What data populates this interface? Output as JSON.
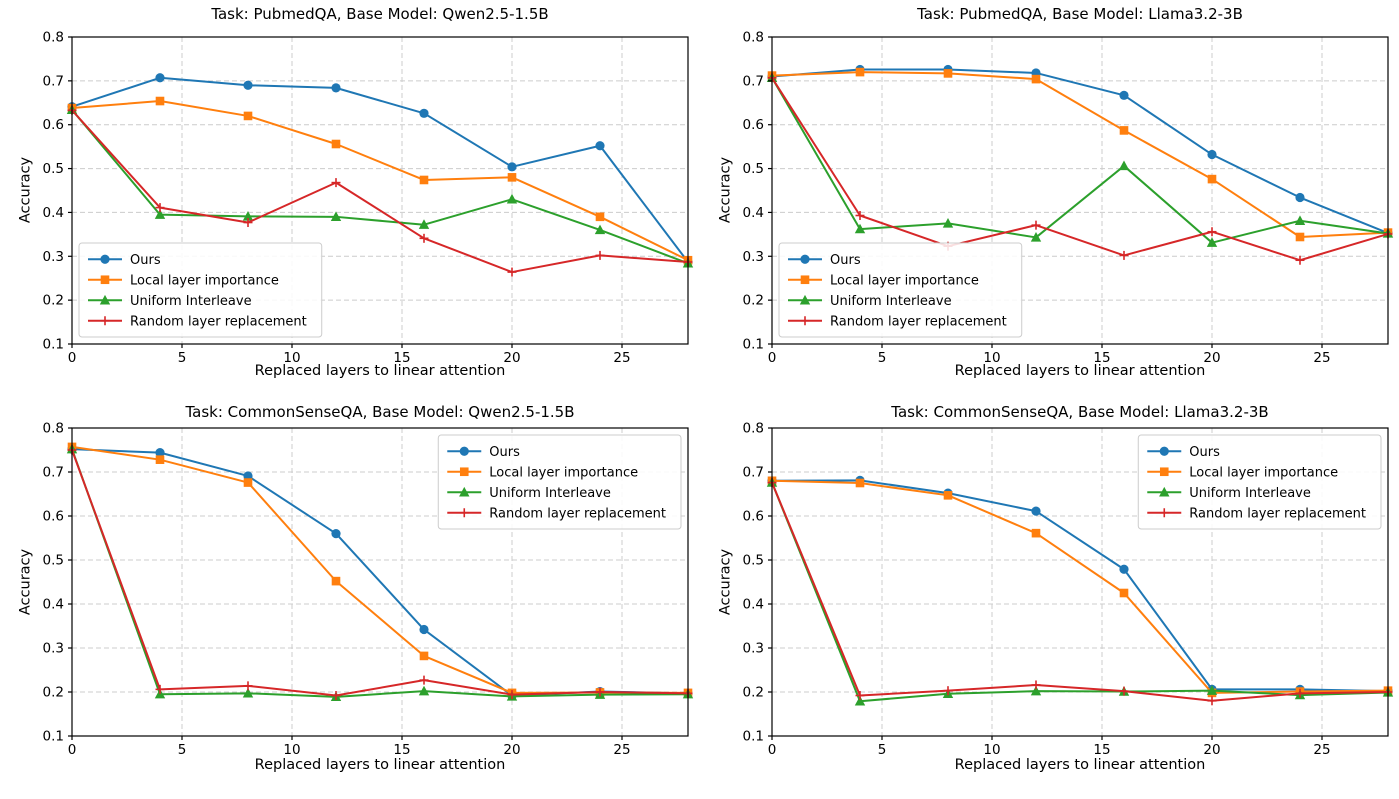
{
  "figure": {
    "background": "#ffffff",
    "text_color": "#000000",
    "grid_color": "#cccccc",
    "spine_color": "#000000",
    "legend_border_color": "#cccccc"
  },
  "chart_data": [
    {
      "type": "line",
      "title": "Task: PubmedQA, Base Model: Qwen2.5-1.5B",
      "xlabel": "Replaced layers to linear attention",
      "ylabel": "Accuracy",
      "x": [
        0,
        4,
        8,
        12,
        16,
        20,
        24,
        28
      ],
      "xlim": [
        0,
        28
      ],
      "ylim": [
        0.1,
        0.8
      ],
      "xticks": [
        0,
        5,
        10,
        15,
        20,
        25
      ],
      "yticks": [
        0.1,
        0.2,
        0.3,
        0.4,
        0.5,
        0.6,
        0.7,
        0.8
      ],
      "grid": true,
      "legend_position": "lower-left",
      "series": [
        {
          "name": "Ours",
          "color": "#1f77b4",
          "marker": "circle",
          "values": [
            0.641,
            0.707,
            0.69,
            0.684,
            0.626,
            0.504,
            0.552,
            0.287
          ]
        },
        {
          "name": "Local layer importance",
          "color": "#ff7f0e",
          "marker": "square",
          "values": [
            0.638,
            0.654,
            0.62,
            0.556,
            0.474,
            0.48,
            0.39,
            0.291
          ]
        },
        {
          "name": "Uniform Interleave",
          "color": "#2ca02c",
          "marker": "triangle",
          "values": [
            0.634,
            0.395,
            0.391,
            0.39,
            0.372,
            0.43,
            0.36,
            0.284
          ]
        },
        {
          "name": "Random layer replacement",
          "color": "#d62728",
          "marker": "plus",
          "values": [
            0.633,
            0.411,
            0.377,
            0.468,
            0.341,
            0.264,
            0.302,
            0.287
          ]
        }
      ]
    },
    {
      "type": "line",
      "title": "Task: PubmedQA, Base Model: Llama3.2-3B",
      "xlabel": "Replaced layers to linear attention",
      "ylabel": "Accuracy",
      "x": [
        0,
        4,
        8,
        12,
        16,
        20,
        24,
        28
      ],
      "xlim": [
        0,
        28
      ],
      "ylim": [
        0.1,
        0.8
      ],
      "xticks": [
        0,
        5,
        10,
        15,
        20,
        25
      ],
      "yticks": [
        0.1,
        0.2,
        0.3,
        0.4,
        0.5,
        0.6,
        0.7,
        0.8
      ],
      "grid": true,
      "legend_position": "lower-left",
      "series": [
        {
          "name": "Ours",
          "color": "#1f77b4",
          "marker": "circle",
          "values": [
            0.71,
            0.726,
            0.726,
            0.718,
            0.667,
            0.532,
            0.434,
            0.353
          ]
        },
        {
          "name": "Local layer importance",
          "color": "#ff7f0e",
          "marker": "square",
          "values": [
            0.712,
            0.72,
            0.717,
            0.704,
            0.587,
            0.476,
            0.344,
            0.354
          ]
        },
        {
          "name": "Uniform Interleave",
          "color": "#2ca02c",
          "marker": "triangle",
          "values": [
            0.707,
            0.362,
            0.375,
            0.343,
            0.506,
            0.331,
            0.381,
            0.352
          ]
        },
        {
          "name": "Random layer replacement",
          "color": "#d62728",
          "marker": "plus",
          "values": [
            0.707,
            0.393,
            0.323,
            0.371,
            0.302,
            0.356,
            0.291,
            0.351
          ]
        }
      ]
    },
    {
      "type": "line",
      "title": "Task: CommonSenseQA, Base Model: Qwen2.5-1.5B",
      "xlabel": "Replaced layers to linear attention",
      "ylabel": "Accuracy",
      "x": [
        0,
        4,
        8,
        12,
        16,
        20,
        24,
        28
      ],
      "xlim": [
        0,
        28
      ],
      "ylim": [
        0.1,
        0.8
      ],
      "xticks": [
        0,
        5,
        10,
        15,
        20,
        25
      ],
      "yticks": [
        0.1,
        0.2,
        0.3,
        0.4,
        0.5,
        0.6,
        0.7,
        0.8
      ],
      "grid": true,
      "legend_position": "upper-right",
      "series": [
        {
          "name": "Ours",
          "color": "#1f77b4",
          "marker": "circle",
          "values": [
            0.752,
            0.744,
            0.691,
            0.56,
            0.342,
            0.192,
            0.201,
            0.197
          ]
        },
        {
          "name": "Local layer importance",
          "color": "#ff7f0e",
          "marker": "square",
          "values": [
            0.757,
            0.728,
            0.676,
            0.452,
            0.282,
            0.198,
            0.199,
            0.198
          ]
        },
        {
          "name": "Uniform Interleave",
          "color": "#2ca02c",
          "marker": "triangle",
          "values": [
            0.752,
            0.195,
            0.197,
            0.189,
            0.202,
            0.19,
            0.194,
            0.195
          ]
        },
        {
          "name": "Random layer replacement",
          "color": "#d62728",
          "marker": "plus",
          "values": [
            0.75,
            0.206,
            0.214,
            0.192,
            0.227,
            0.194,
            0.2,
            0.197
          ]
        }
      ]
    },
    {
      "type": "line",
      "title": "Task: CommonSenseQA, Base Model: Llama3.2-3B",
      "xlabel": "Replaced layers to linear attention",
      "ylabel": "Accuracy",
      "x": [
        0,
        4,
        8,
        12,
        16,
        20,
        24,
        28
      ],
      "xlim": [
        0,
        28
      ],
      "ylim": [
        0.1,
        0.8
      ],
      "xticks": [
        0,
        5,
        10,
        15,
        20,
        25
      ],
      "yticks": [
        0.1,
        0.2,
        0.3,
        0.4,
        0.5,
        0.6,
        0.7,
        0.8
      ],
      "grid": true,
      "legend_position": "upper-right",
      "series": [
        {
          "name": "Ours",
          "color": "#1f77b4",
          "marker": "circle",
          "values": [
            0.68,
            0.681,
            0.652,
            0.611,
            0.479,
            0.206,
            0.206,
            0.202
          ]
        },
        {
          "name": "Local layer importance",
          "color": "#ff7f0e",
          "marker": "square",
          "values": [
            0.68,
            0.675,
            0.647,
            0.561,
            0.425,
            0.198,
            0.201,
            0.203
          ]
        },
        {
          "name": "Uniform Interleave",
          "color": "#2ca02c",
          "marker": "triangle",
          "values": [
            0.676,
            0.179,
            0.196,
            0.202,
            0.201,
            0.203,
            0.193,
            0.199
          ]
        },
        {
          "name": "Random layer replacement",
          "color": "#d62728",
          "marker": "plus",
          "values": [
            0.676,
            0.192,
            0.203,
            0.216,
            0.202,
            0.18,
            0.197,
            0.2
          ]
        }
      ]
    }
  ]
}
